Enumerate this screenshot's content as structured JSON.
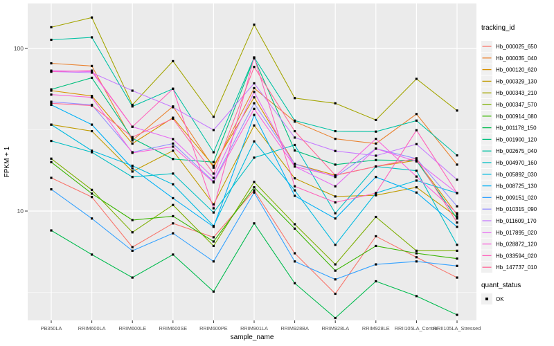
{
  "chart_data": {
    "type": "line",
    "title": "",
    "xlabel": "sample_name",
    "ylabel": "FPKM + 1",
    "y_scale": "log10",
    "ylim": [
      1.9,
      200
    ],
    "grid": "on",
    "legend_position": "right",
    "legend_title": "tracking_id",
    "panel_bg": "#EBEBEB",
    "grid_color": "#FFFFFF",
    "point_color": "#000000",
    "tick_label_color": "#4D4D4D",
    "x_categories": [
      "PB350LA",
      "RRIM600LA",
      "RRIM600LE",
      "RRIM600SE",
      "RRIM600PE",
      "RRIM901LA",
      "RRIM928BA",
      "RRIM928LA",
      "RRIM928LE",
      "RRII105LA_Control",
      "RRII105LA_Stressed"
    ],
    "y_ticks": [
      {
        "value": 100,
        "label": "100"
      },
      {
        "value": 10,
        "label": "10"
      }
    ],
    "y_minor_ticks": [
      31.62,
      3.162
    ],
    "series": [
      {
        "name": "Hb_000025_650",
        "color": "#F8766D",
        "values": [
          16,
          12.2,
          6.0,
          8.4,
          6.9,
          13.4,
          5.5,
          3.1,
          7.0,
          5.2,
          3.9
        ]
      },
      {
        "name": "Hb_000035_040",
        "color": "#EA8331",
        "values": [
          81,
          78,
          27.2,
          44,
          18.5,
          57,
          35.5,
          27.8,
          26,
          39.5,
          19.3
        ]
      },
      {
        "name": "Hb_000120_620",
        "color": "#D89000",
        "values": [
          55,
          51,
          26,
          37.5,
          19,
          50,
          19.5,
          16.6,
          18.8,
          20.5,
          9.5
        ]
      },
      {
        "name": "Hb_000329_130",
        "color": "#C09B00",
        "values": [
          34,
          31,
          17.5,
          23.5,
          11,
          33.6,
          15.9,
          12.3,
          12.5,
          14,
          9.2
        ]
      },
      {
        "name": "Hb_000343_210",
        "color": "#A3A500",
        "values": [
          135,
          155,
          45,
          83.5,
          38,
          140,
          49.5,
          46,
          36.3,
          65,
          41.5
        ]
      },
      {
        "name": "Hb_000347_570",
        "color": "#7CAE00",
        "values": [
          21,
          13.5,
          7.4,
          10.9,
          6.1,
          15.1,
          8.3,
          4.7,
          9.2,
          5.7,
          5.7
        ]
      },
      {
        "name": "Hb_000914_080",
        "color": "#39B600",
        "values": [
          20,
          12.8,
          8.8,
          9.3,
          6.5,
          14,
          7.8,
          4.3,
          6.1,
          5.5,
          5.1
        ]
      },
      {
        "name": "Hb_001178_150",
        "color": "#00BB4E",
        "values": [
          7.6,
          5.4,
          3.9,
          5.4,
          3.2,
          8.4,
          3.6,
          2.2,
          3.7,
          3.0,
          2.3
        ]
      },
      {
        "name": "Hb_001900_120",
        "color": "#00BF7D",
        "values": [
          56,
          66,
          28,
          20.9,
          20,
          87,
          23.6,
          19.3,
          20.6,
          20.4,
          9.0
        ]
      },
      {
        "name": "Hb_002675_040",
        "color": "#00C1A3",
        "values": [
          113,
          117,
          44,
          56.5,
          23,
          88,
          36,
          31,
          30.8,
          36,
          22
        ]
      },
      {
        "name": "Hb_004970_160",
        "color": "#00BFC4",
        "values": [
          27,
          23,
          16.2,
          17,
          9.8,
          21.3,
          25.5,
          9.7,
          18.8,
          17.7,
          6.2
        ]
      },
      {
        "name": "Hb_005892_030",
        "color": "#00BAE0",
        "values": [
          34,
          23.5,
          19,
          14.6,
          8.1,
          26.8,
          13.4,
          6.2,
          12.9,
          15.4,
          12.9
        ]
      },
      {
        "name": "Hb_008725_130",
        "color": "#00B0F6",
        "values": [
          45,
          34,
          18.3,
          12,
          8.0,
          39,
          12.4,
          9.0,
          16.2,
          13.0,
          8.0
        ]
      },
      {
        "name": "Hb_009151_020",
        "color": "#35A2FF",
        "values": [
          13.6,
          9.0,
          5.7,
          7.3,
          4.9,
          13.0,
          4.9,
          3.8,
          4.7,
          4.9,
          4.6
        ]
      },
      {
        "name": "Hb_010315_090",
        "color": "#9590FF",
        "values": [
          47,
          45,
          23,
          26,
          15.2,
          46,
          19.5,
          16.2,
          24.2,
          21,
          10.7
        ]
      },
      {
        "name": "Hb_011609_170",
        "color": "#C77CFF",
        "values": [
          72,
          71,
          55,
          43.5,
          31.5,
          61,
          28.3,
          23.4,
          21.9,
          25.8,
          15.6
        ]
      },
      {
        "name": "Hb_017895_020",
        "color": "#E76BF3",
        "values": [
          73,
          72,
          33,
          27.7,
          16,
          54,
          18.8,
          14.2,
          24.2,
          20.2,
          12.9
        ]
      },
      {
        "name": "Hb_028872_120",
        "color": "#FA62DB",
        "values": [
          52,
          50,
          22.8,
          24.9,
          15.0,
          42.5,
          18.8,
          16.4,
          27.8,
          16.3,
          9.7
        ]
      },
      {
        "name": "Hb_033594_020",
        "color": "#FF62BC",
        "values": [
          72,
          73,
          33,
          56.5,
          10.4,
          88,
          14.2,
          11.3,
          12.9,
          31.4,
          12.9
        ]
      },
      {
        "name": "Hb_147737_010",
        "color": "#FF6A98",
        "values": [
          46,
          44.5,
          28.5,
          37,
          17,
          77,
          31,
          16.6,
          18.8,
          21.1,
          8.5
        ]
      }
    ],
    "quant_legend": {
      "title": "quant_status",
      "items": [
        {
          "label": "OK",
          "marker": "black-square"
        }
      ]
    }
  }
}
